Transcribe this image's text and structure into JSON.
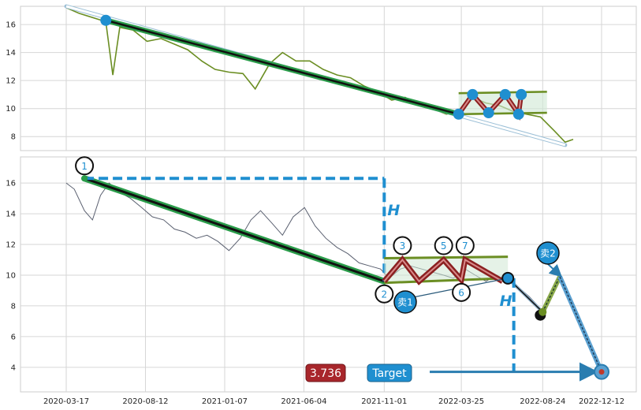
{
  "chart_data": [
    {
      "type": "line",
      "panel": "top",
      "title": "",
      "xlabel": "",
      "ylabel": "",
      "ylim": [
        7.0,
        17.3
      ],
      "yticks": [
        8,
        10,
        12,
        14,
        16
      ],
      "ytick_labels": [
        "8",
        "10",
        "12",
        "14",
        "16"
      ],
      "grid": true,
      "series": [
        {
          "color": "#6b8e23",
          "x": [
            "2020-03-17",
            "2020-04-10",
            "2020-05-05",
            "2020-05-30",
            "2020-06-12",
            "2020-06-25",
            "2020-07-20",
            "2020-08-15",
            "2020-09-10",
            "2020-10-05",
            "2020-10-30",
            "2020-11-25",
            "2020-12-20",
            "2021-01-15",
            "2021-02-10",
            "2021-03-05",
            "2021-04-01",
            "2021-04-25",
            "2021-05-20",
            "2021-06-15",
            "2021-07-10",
            "2021-08-05",
            "2021-08-30",
            "2021-09-25",
            "2021-10-20",
            "2021-11-15",
            "2021-12-10",
            "2022-01-05",
            "2022-01-30",
            "2022-02-25",
            "2022-03-20",
            "2022-04-15",
            "2022-05-10",
            "2022-06-05",
            "2022-06-30",
            "2022-07-25",
            "2022-08-20",
            "2022-09-15",
            "2022-10-05",
            "2022-10-20"
          ],
          "y": [
            17.2,
            16.8,
            16.5,
            16.2,
            12.4,
            15.8,
            15.6,
            14.8,
            15.0,
            14.6,
            14.2,
            13.4,
            12.8,
            12.6,
            12.5,
            11.4,
            13.2,
            14.0,
            13.4,
            13.4,
            12.8,
            12.4,
            12.2,
            11.6,
            11.2,
            10.6,
            10.8,
            10.2,
            10.0,
            9.6,
            9.8,
            10.8,
            10.4,
            10.2,
            9.8,
            9.6,
            9.4,
            8.4,
            7.6,
            7.8
          ]
        }
      ],
      "trend_line": {
        "x": [
          "2020-05-30",
          "2022-03-20"
        ],
        "y": [
          16.3,
          9.6
        ]
      },
      "channel_arrow": {
        "x": [
          "2020-03-17",
          "2022-10-05"
        ],
        "y": [
          17.3,
          7.4
        ]
      },
      "channel": {
        "upper": {
          "x": [
            "2022-03-20",
            "2022-09-01"
          ],
          "y": [
            11.1,
            11.2
          ]
        },
        "lower": {
          "x": [
            "2022-03-20",
            "2022-09-01"
          ],
          "y": [
            9.6,
            9.7
          ]
        }
      },
      "pivots": [
        {
          "x": "2022-03-20",
          "y": 9.6
        },
        {
          "x": "2022-04-15",
          "y": 11.0
        },
        {
          "x": "2022-05-15",
          "y": 9.7
        },
        {
          "x": "2022-06-15",
          "y": 11.0
        },
        {
          "x": "2022-07-10",
          "y": 9.6
        },
        {
          "x": "2022-07-15",
          "y": 11.0
        }
      ]
    },
    {
      "type": "line",
      "panel": "bottom",
      "title": "",
      "xlabel": "",
      "ylabel": "",
      "ylim": [
        2.4,
        17.7
      ],
      "yticks": [
        4,
        6,
        8,
        10,
        12,
        14,
        16
      ],
      "ytick_labels": [
        "4",
        "6",
        "8",
        "10",
        "12",
        "14",
        "16"
      ],
      "xticks": [
        "2020-03-17",
        "2020-08-12",
        "2021-01-07",
        "2021-06-04",
        "2021-11-01",
        "2022-03-25",
        "2022-08-24",
        "2022-12-12"
      ],
      "grid": true,
      "series": [
        {
          "color": "#5a6070",
          "x": [
            "2020-03-17",
            "2020-04-01",
            "2020-04-20",
            "2020-05-05",
            "2020-05-20",
            "2020-06-05",
            "2020-06-25",
            "2020-07-15",
            "2020-08-05",
            "2020-08-25",
            "2020-09-15",
            "2020-10-05",
            "2020-10-25",
            "2020-11-15",
            "2020-12-05",
            "2020-12-25",
            "2021-01-15",
            "2021-02-05",
            "2021-02-25",
            "2021-03-15",
            "2021-04-05",
            "2021-04-25",
            "2021-05-15",
            "2021-06-05",
            "2021-06-25",
            "2021-07-15",
            "2021-08-05",
            "2021-08-25",
            "2021-09-15",
            "2021-10-05",
            "2021-10-25",
            "2021-11-10",
            "2021-12-01",
            "2021-12-20",
            "2022-01-10",
            "2022-01-30",
            "2022-02-20",
            "2022-03-10",
            "2022-04-01",
            "2022-04-20",
            "2022-05-10",
            "2022-05-30",
            "2022-06-20",
            "2022-07-10",
            "2022-07-30",
            "2022-08-15"
          ],
          "y": [
            16.0,
            15.6,
            14.2,
            13.6,
            15.2,
            16.0,
            15.4,
            15.0,
            14.4,
            13.8,
            13.6,
            13.0,
            12.8,
            12.4,
            12.6,
            12.2,
            11.6,
            12.4,
            13.6,
            14.2,
            13.4,
            12.6,
            13.8,
            14.4,
            13.2,
            12.4,
            11.8,
            11.4,
            10.8,
            10.6,
            10.4,
            9.8,
            10.4,
            10.6,
            10.4,
            10.2,
            10.0,
            9.8,
            10.4,
            10.0,
            9.6,
            10.0,
            9.6,
            9.2,
            8.6,
            8.0
          ]
        }
      ],
      "trend_line": {
        "x": [
          "2020-04-20",
          "2021-11-01"
        ],
        "y": [
          16.3,
          9.6
        ]
      },
      "channel": {
        "upper": {
          "x": [
            "2021-11-01",
            "2022-06-20"
          ],
          "y": [
            11.1,
            11.2
          ]
        },
        "lower": {
          "x": [
            "2021-11-01",
            "2022-06-20"
          ],
          "y": [
            9.5,
            9.8
          ]
        }
      },
      "pivots": [
        {
          "x": "2021-11-01",
          "y": 9.6
        },
        {
          "x": "2021-12-05",
          "y": 11.0
        },
        {
          "x": "2022-01-05",
          "y": 9.6
        },
        {
          "x": "2022-02-20",
          "y": 11.0
        },
        {
          "x": "2022-03-25",
          "y": 9.7
        },
        {
          "x": "2022-04-01",
          "y": 11.0
        },
        {
          "x": "2022-06-10",
          "y": 9.6
        }
      ],
      "height_line": {
        "x": [
          "2020-04-20",
          "2021-11-01"
        ],
        "y_top": 16.3,
        "y_bottom": 9.6
      },
      "projection": {
        "from": {
          "x": "2022-06-20",
          "y": 9.8
        },
        "low": {
          "x": "2022-08-24",
          "y": 7.6
        },
        "peak": {
          "x": "2022-09-25",
          "y": 9.9
        },
        "target": {
          "x": "2022-12-12",
          "y": 3.7
        }
      },
      "target_arrow": {
        "x": [
          "2022-01-25",
          "2022-12-12"
        ],
        "y": 3.7
      },
      "marker_labels": [
        {
          "label": "1",
          "x": "2020-04-20",
          "y": 16.3
        },
        {
          "label": "2",
          "x": "2021-11-01",
          "y": 9.6
        },
        {
          "label": "3",
          "x": "2021-12-05",
          "y": 11.0
        },
        {
          "label": "5",
          "x": "2022-02-20",
          "y": 11.0
        },
        {
          "label": "6",
          "x": "2022-03-25",
          "y": 9.7
        },
        {
          "label": "7",
          "x": "2022-04-01",
          "y": 11.0
        }
      ],
      "annotations": {
        "height_label": "H",
        "sell1": "卖1",
        "sell2": "卖2",
        "target_label": "Target",
        "target_value": "3.736"
      }
    }
  ]
}
